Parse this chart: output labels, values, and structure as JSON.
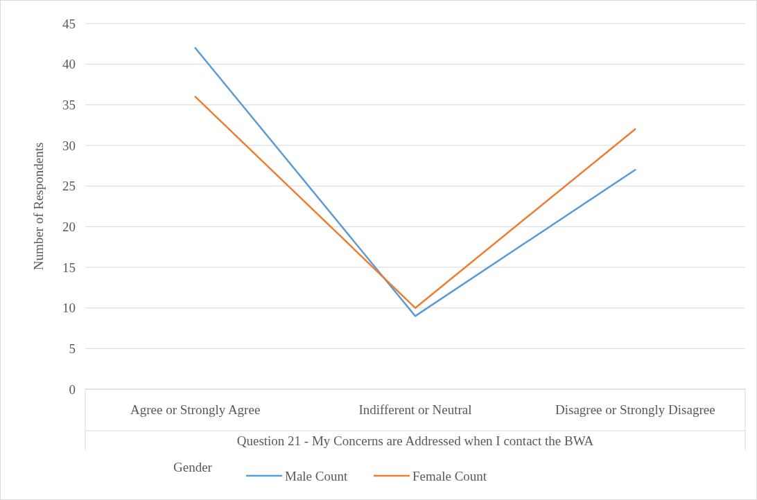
{
  "chart_data": {
    "type": "line",
    "xlabel": "Question 21 - My Concerns are Addressed when I contact the BWA",
    "ylabel": "Number of Respondents",
    "legend_title": "Gender",
    "categories": [
      "Agree or Strongly Agree",
      "Indifferent or Neutral",
      "Disagree or Strongly Disagree"
    ],
    "series": [
      {
        "name": "Male Count",
        "color": "#5b9bd5",
        "values": [
          42,
          9,
          27
        ]
      },
      {
        "name": "Female Count",
        "color": "#ed7d31",
        "values": [
          36,
          10,
          32
        ]
      }
    ],
    "ylim": [
      0,
      45
    ],
    "yticks": [
      0,
      5,
      10,
      15,
      20,
      25,
      30,
      35,
      40,
      45
    ],
    "grid": "y",
    "legend": "bottom",
    "marker": "none",
    "line_style": "solid"
  }
}
